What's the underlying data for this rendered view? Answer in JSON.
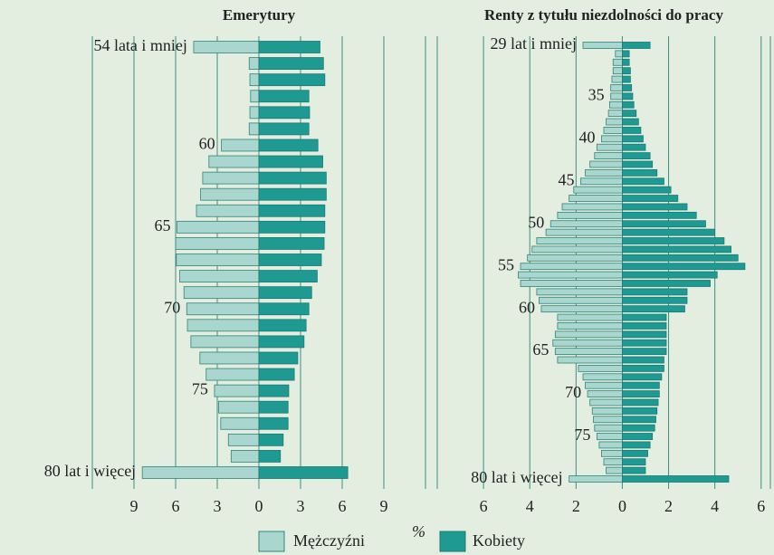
{
  "chart_data": [
    {
      "type": "pyramid",
      "title": "Emerytury",
      "unit": "%",
      "categories": [
        "54 lata i mniej",
        null,
        null,
        null,
        null,
        null,
        "60",
        null,
        null,
        null,
        null,
        "65",
        null,
        null,
        null,
        null,
        "70",
        null,
        null,
        null,
        null,
        "75",
        null,
        null,
        null,
        null,
        "80 lat i więcej"
      ],
      "series": [
        {
          "name": "Mężczyźni",
          "color": "#a9d6cf",
          "side": "left",
          "values": [
            4.7,
            0.7,
            0.65,
            0.6,
            0.65,
            0.7,
            2.7,
            3.6,
            4.05,
            4.2,
            4.5,
            5.9,
            6.0,
            5.95,
            5.7,
            5.4,
            5.2,
            5.15,
            4.9,
            4.25,
            3.8,
            3.2,
            2.9,
            2.75,
            2.2,
            2.0,
            8.4
          ]
        },
        {
          "name": "Kobiety",
          "color": "#1f9a92",
          "side": "right",
          "values": [
            4.4,
            4.65,
            4.75,
            3.6,
            3.65,
            3.6,
            4.25,
            4.6,
            4.85,
            4.85,
            4.75,
            4.75,
            4.7,
            4.5,
            4.2,
            3.8,
            3.6,
            3.4,
            3.25,
            2.8,
            2.55,
            2.15,
            2.1,
            2.1,
            1.75,
            1.55,
            6.4
          ]
        }
      ],
      "xlim": [
        -12,
        12
      ],
      "xticks": [
        {
          "value": -9,
          "label": "9"
        },
        {
          "value": -6,
          "label": "6"
        },
        {
          "value": -3,
          "label": "3"
        },
        0,
        3,
        6,
        9
      ],
      "grid": true
    },
    {
      "type": "pyramid",
      "title": "Renty z tytułu niezdolności do pracy",
      "categories": [
        "29 lat i mniej",
        null,
        null,
        null,
        null,
        null,
        "35",
        null,
        null,
        null,
        null,
        "40",
        null,
        null,
        null,
        null,
        "45",
        null,
        null,
        null,
        null,
        "50",
        null,
        null,
        null,
        null,
        "55",
        null,
        null,
        null,
        null,
        "60",
        null,
        null,
        null,
        null,
        "65",
        null,
        null,
        null,
        null,
        "70",
        null,
        null,
        null,
        null,
        "75",
        null,
        null,
        null,
        null,
        "80 lat i więcej"
      ],
      "series": [
        {
          "color": "#a9d6cf",
          "side": "left",
          "values": [
            1.7,
            0.3,
            0.4,
            0.4,
            0.45,
            0.5,
            0.5,
            0.55,
            0.6,
            0.7,
            0.8,
            0.9,
            1.1,
            1.2,
            1.4,
            1.6,
            1.8,
            2.1,
            2.3,
            2.6,
            2.8,
            3.1,
            3.3,
            3.7,
            3.9,
            4.1,
            4.4,
            4.5,
            4.4,
            3.7,
            3.6,
            3.5,
            2.8,
            2.8,
            2.9,
            3.0,
            2.9,
            2.8,
            1.9,
            1.7,
            1.6,
            1.5,
            1.4,
            1.3,
            1.25,
            1.2,
            1.1,
            1.0,
            0.9,
            0.8,
            0.7,
            2.3
          ]
        },
        {
          "color": "#1f9a92",
          "side": "right",
          "values": [
            1.2,
            0.3,
            0.3,
            0.35,
            0.35,
            0.4,
            0.45,
            0.5,
            0.6,
            0.7,
            0.8,
            0.9,
            1.0,
            1.2,
            1.3,
            1.5,
            1.8,
            2.1,
            2.4,
            2.8,
            3.2,
            3.6,
            4.0,
            4.4,
            4.7,
            5.0,
            5.3,
            4.1,
            3.8,
            2.8,
            2.8,
            2.7,
            1.9,
            1.9,
            1.9,
            1.9,
            1.9,
            1.8,
            1.8,
            1.7,
            1.6,
            1.6,
            1.55,
            1.5,
            1.45,
            1.4,
            1.3,
            1.2,
            1.1,
            1.0,
            1.0,
            4.6
          ]
        }
      ],
      "xlim": [
        -8,
        6.4
      ],
      "xticks": [
        {
          "value": -6,
          "label": "6"
        },
        {
          "value": -4,
          "label": "4"
        },
        {
          "value": -2,
          "label": "2"
        },
        0,
        2,
        4,
        6
      ],
      "grid": true
    }
  ]
}
